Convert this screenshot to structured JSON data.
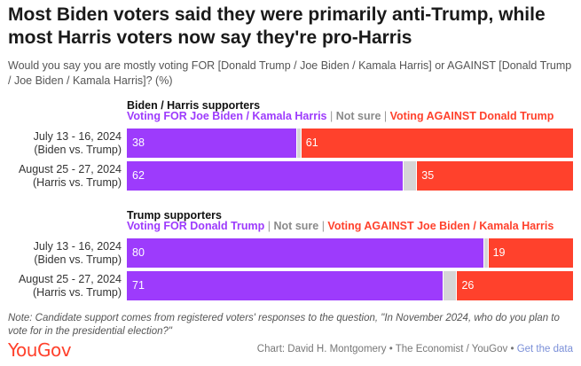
{
  "header": {
    "title": "Most Biden voters said they were primarily anti-Trump, while most Harris voters now say they're pro-Harris",
    "subtitle": "Would you say you are mostly voting FOR [Donald Trump / Joe Biden / Kamala Harris] or AGAINST [Donald Trump / Joe Biden / Kamala Harris]? (%)"
  },
  "colors": {
    "for": "#9d3bfc",
    "not_sure": "#d6d6d6",
    "against": "#ff412c"
  },
  "chart_data": [
    {
      "type": "bar",
      "stacked": true,
      "orientation": "horizontal",
      "group_title": "Biden / Harris supporters",
      "legend": [
        "Voting FOR Joe Biden / Kamala Harris",
        "Not sure",
        "Voting AGAINST Donald Trump"
      ],
      "categories": [
        "July 13 - 16, 2024 (Biden vs. Trump)",
        "August 25 - 27, 2024 (Harris vs. Trump)"
      ],
      "category_lines": [
        [
          "July 13 - 16, 2024",
          "(Biden vs. Trump)"
        ],
        [
          "August 25 - 27, 2024",
          "(Harris vs. Trump)"
        ]
      ],
      "series": [
        {
          "name": "Voting FOR Joe Biden / Kamala Harris",
          "values": [
            38,
            62
          ]
        },
        {
          "name": "Not sure",
          "values": [
            1,
            3
          ]
        },
        {
          "name": "Voting AGAINST Donald Trump",
          "values": [
            61,
            35
          ]
        }
      ],
      "xlim": [
        0,
        100
      ]
    },
    {
      "type": "bar",
      "stacked": true,
      "orientation": "horizontal",
      "group_title": "Trump supporters",
      "legend": [
        "Voting FOR Donald Trump",
        "Not sure",
        "Voting AGAINST Joe Biden / Kamala Harris"
      ],
      "categories": [
        "July 13 - 16, 2024 (Biden vs. Trump)",
        "August 25 - 27, 2024 (Harris vs. Trump)"
      ],
      "category_lines": [
        [
          "July 13 - 16, 2024",
          "(Biden vs. Trump)"
        ],
        [
          "August 25 - 27, 2024",
          "(Harris vs. Trump)"
        ]
      ],
      "series": [
        {
          "name": "Voting FOR Donald Trump",
          "values": [
            80,
            71
          ]
        },
        {
          "name": "Not sure",
          "values": [
            1,
            3
          ]
        },
        {
          "name": "Voting AGAINST Joe Biden / Kamala Harris",
          "values": [
            19,
            26
          ]
        }
      ],
      "xlim": [
        0,
        100
      ]
    }
  ],
  "footer": {
    "note": "Note: Candidate support comes from registered voters' responses to the question, \"In November 2024, who do you plan to vote for in the presidential election?\"",
    "logo": "YouGov",
    "credit": "Chart: David H. Montgomery • The Economist / YouGov • ",
    "link": "Get the data"
  }
}
